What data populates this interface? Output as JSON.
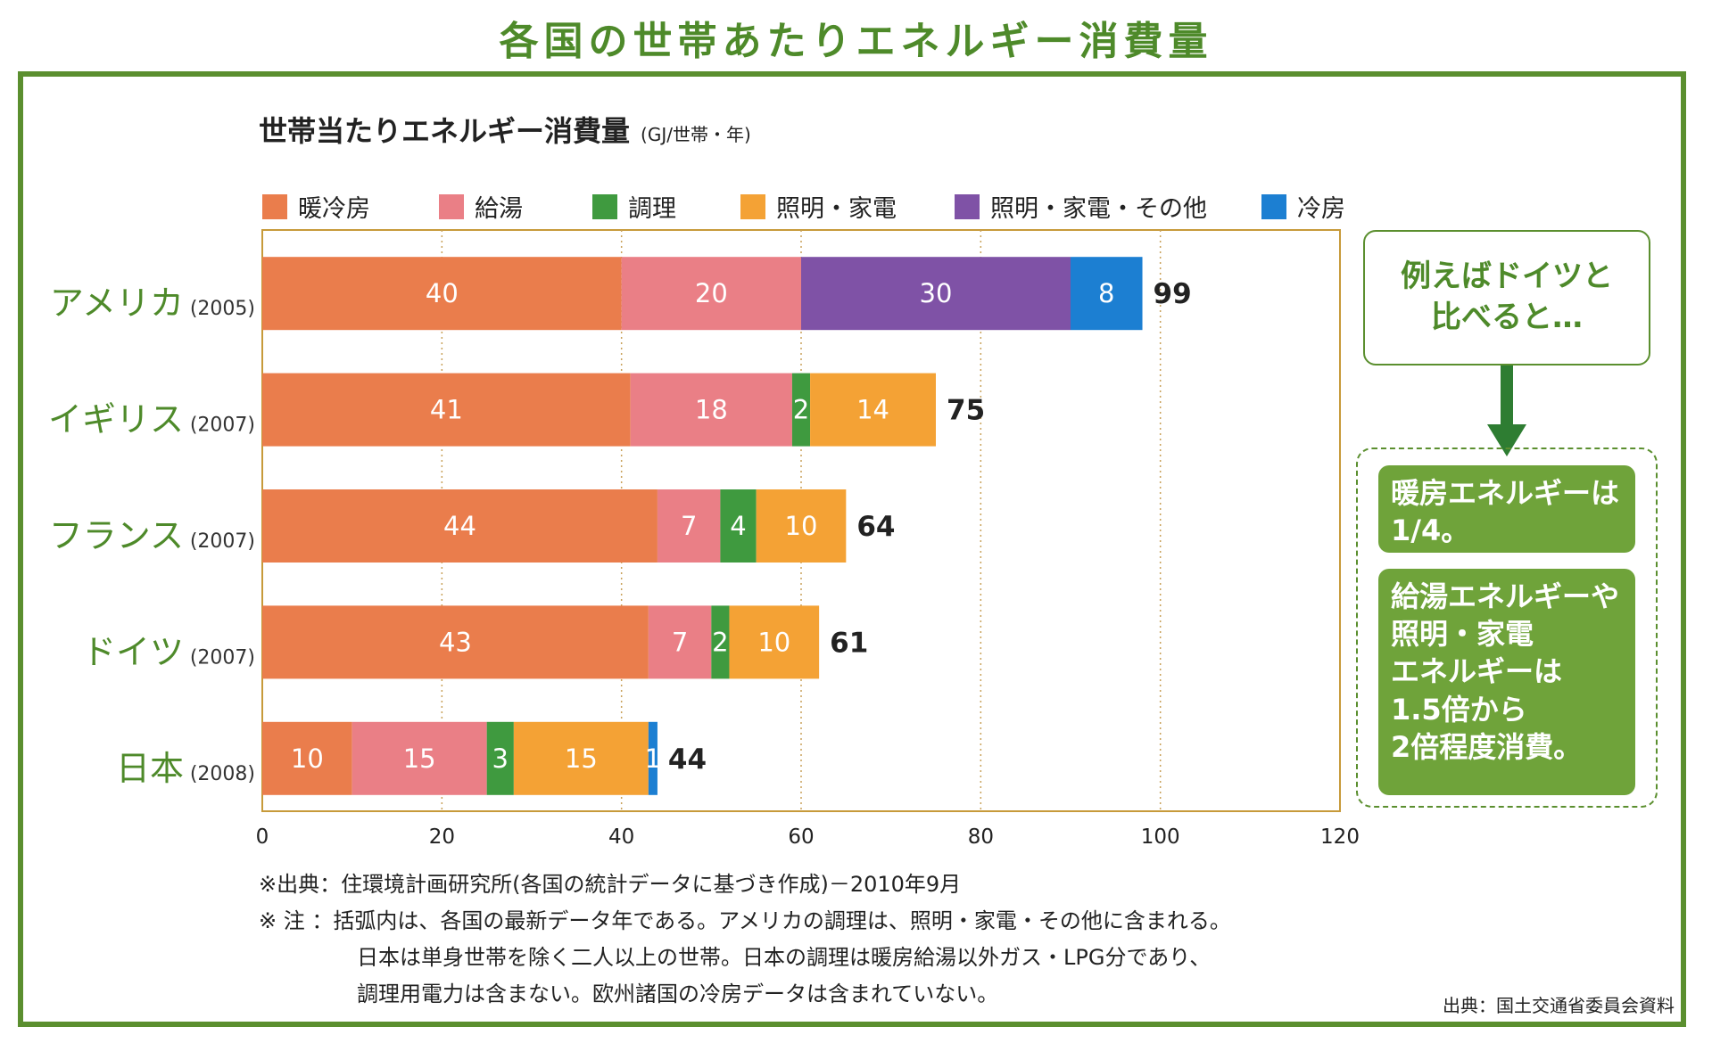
{
  "page_title": "各国の世帯あたりエネルギー消費量",
  "chart_title": "世帯当たりエネルギー消費量",
  "chart_unit": "(GJ/世帯・年)",
  "legend": [
    {
      "label": "暖冷房",
      "color": "#ea7d4c"
    },
    {
      "label": "給湯",
      "color": "#ea7f86"
    },
    {
      "label": "調理",
      "color": "#3f9a3f"
    },
    {
      "label": "照明・家電",
      "color": "#f4a235"
    },
    {
      "label": "照明・家電・その他",
      "color": "#7f52a6"
    },
    {
      "label": "冷房",
      "color": "#1c7fd2"
    }
  ],
  "chart_data": {
    "type": "bar",
    "orientation": "horizontal",
    "stacked": true,
    "categories": [
      {
        "name": "アメリカ",
        "year": "(2005)"
      },
      {
        "name": "イギリス",
        "year": "(2007)"
      },
      {
        "name": "フランス",
        "year": "(2007)"
      },
      {
        "name": "ドイツ",
        "year": "(2007)"
      },
      {
        "name": "日本",
        "year": "(2008)"
      }
    ],
    "bars": [
      {
        "segments": [
          {
            "series": "暖冷房",
            "value": 40
          },
          {
            "series": "給湯",
            "value": 20
          },
          {
            "series": "照明・家電・その他",
            "value": 30
          },
          {
            "series": "冷房",
            "value": 8
          }
        ],
        "total": 99
      },
      {
        "segments": [
          {
            "series": "暖冷房",
            "value": 41
          },
          {
            "series": "給湯",
            "value": 18
          },
          {
            "series": "調理",
            "value": 2
          },
          {
            "series": "照明・家電",
            "value": 14
          }
        ],
        "total": 75
      },
      {
        "segments": [
          {
            "series": "暖冷房",
            "value": 44
          },
          {
            "series": "給湯",
            "value": 7
          },
          {
            "series": "調理",
            "value": 4
          },
          {
            "series": "照明・家電",
            "value": 10
          }
        ],
        "total": 64
      },
      {
        "segments": [
          {
            "series": "暖冷房",
            "value": 43
          },
          {
            "series": "給湯",
            "value": 7
          },
          {
            "series": "調理",
            "value": 2
          },
          {
            "series": "照明・家電",
            "value": 10
          }
        ],
        "total": 61
      },
      {
        "segments": [
          {
            "series": "暖冷房",
            "value": 10
          },
          {
            "series": "給湯",
            "value": 15
          },
          {
            "series": "調理",
            "value": 3
          },
          {
            "series": "照明・家電",
            "value": 15
          },
          {
            "series": "冷房",
            "value": 1
          }
        ],
        "total": 44
      }
    ],
    "xlim": [
      0,
      120
    ],
    "xticks": [
      0,
      20,
      40,
      60,
      80,
      100,
      120
    ],
    "grid": "vertical dotted",
    "legend_position": "top"
  },
  "callout": {
    "header": "例えばドイツと\n比べると…",
    "box1": "暖房エネルギーは\n1/4。",
    "box2": "給湯エネルギーや\n照明・家電\nエネルギーは\n1.5倍から\n2倍程度消費。"
  },
  "notes": [
    "※出典：住環境計画研究所(各国の統計データに基づき作成)－2010年9月",
    "※  注  ：括弧内は、各国の最新データ年である。アメリカの調理は、照明・家電・その他に含まれる。",
    "日本は単身世帯を除く二人以上の世帯。日本の調理は暖房給湯以外ガス・LPG分であり、",
    "調理用電力は含まない。欧州諸国の冷房データは含まれていない。"
  ],
  "credit": "出典：国土交通省委員会資料"
}
